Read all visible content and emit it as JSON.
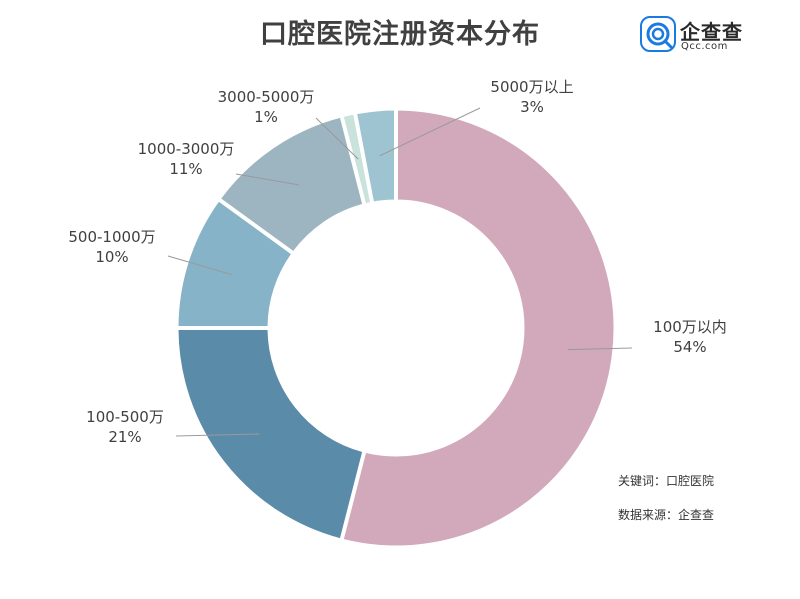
{
  "header": {
    "title": "口腔医院注册资本分布"
  },
  "logo": {
    "name": "企查查",
    "domain": "Qcc.com",
    "color": "#1a7ae0"
  },
  "notes": {
    "keyword_label": "关键词：",
    "keyword_value": "口腔医院",
    "source_label": "数据来源：",
    "source_value": "企查查"
  },
  "chart_data": {
    "type": "pie",
    "variant": "donut",
    "title": "口腔医院注册资本分布",
    "unit": "%",
    "categories": [
      "100万以内",
      "100-500万",
      "500-1000万",
      "1000-3000万",
      "3000-5000万",
      "5000万以上"
    ],
    "values": [
      54,
      21,
      10,
      11,
      1,
      3
    ],
    "value_labels": [
      "54%",
      "21%",
      "10%",
      "11%",
      "1%",
      "3%"
    ],
    "colors": [
      "#d2a8bb",
      "#5a8ba8",
      "#87b3c9",
      "#9cb5c1",
      "#c9e2dc",
      "#9ec3d1"
    ],
    "legend": "none",
    "labels_position": "outside-with-leader-lines"
  }
}
